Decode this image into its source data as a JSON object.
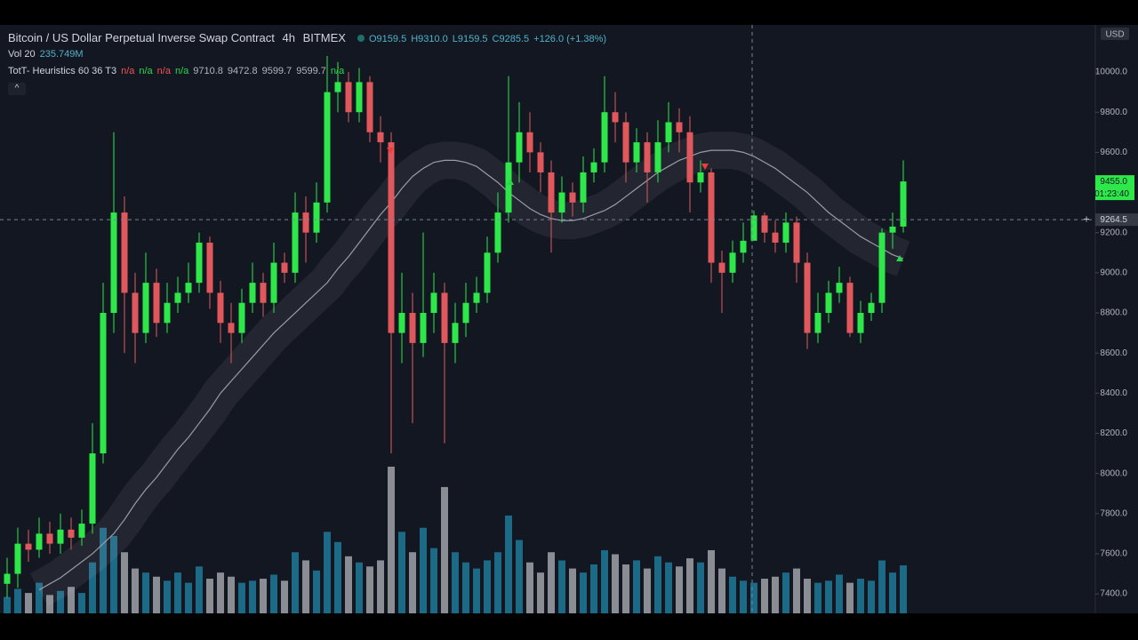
{
  "chart_data": {
    "type": "candlestick",
    "title": "Bitcoin / US Dollar Perpetual Inverse Swap Contract",
    "interval": "4h",
    "exchange": "BITMEX",
    "ohlc_labels": [
      "O9159.5",
      "H9310.0",
      "L9159.5",
      "C9285.5",
      "+126.0 (+1.38%)"
    ],
    "volume_name": "Vol 20",
    "volume_label": "235.749M",
    "indicator_name": "TotT- Heuristics 60 36 T3",
    "indicator_values": [
      "n/a",
      "n/a",
      "n/a",
      "n/a",
      "9710.8",
      "9472.8",
      "9599.7",
      "9599.7",
      "n/a"
    ],
    "indicator_colors": [
      "#ef5350",
      "#26d94b",
      "#ef5350",
      "#26d94b",
      "#b2b5be",
      "#b2b5be",
      "#b2b5be",
      "#b2b5be",
      "#26d94b"
    ],
    "currency": "USD",
    "up_color": "#2ee84a",
    "down_color": "#e0585c",
    "up_volume_color": "#1d6a86",
    "down_volume_color": "#8a8d93",
    "ma_color": "#9a9ca3",
    "ylim": [
      7303,
      10235
    ],
    "yticks": [
      {
        "value": 7400,
        "label": "7400.0"
      },
      {
        "value": 7600,
        "label": "7600.0"
      },
      {
        "value": 7800,
        "label": "7800.0"
      },
      {
        "value": 8000,
        "label": "8000.0"
      },
      {
        "value": 8200,
        "label": "8200.0"
      },
      {
        "value": 8400,
        "label": "8400.0"
      },
      {
        "value": 8600,
        "label": "8600.0"
      },
      {
        "value": 8800,
        "label": "8800.0"
      },
      {
        "value": 9000,
        "label": "9000.0"
      },
      {
        "value": 9200,
        "label": "9200.0"
      },
      {
        "value": 9400,
        "label": "9400.0"
      },
      {
        "value": 9600,
        "label": "9600.0"
      },
      {
        "value": 9800,
        "label": "9800.0"
      },
      {
        "value": 10000,
        "label": "10000.0"
      }
    ],
    "grid": false,
    "last_price": {
      "value": 9455,
      "label": "9455.0"
    },
    "countdown": "01:23:40",
    "crosshair_price": {
      "value": 9264.5,
      "label": "9264.5"
    },
    "open": [
      7450,
      7500,
      7650,
      7620,
      7700,
      7650,
      7720,
      7680,
      7750,
      8100,
      8800,
      9300,
      8900,
      8700,
      8950,
      8750,
      8850,
      8900,
      8950,
      9150,
      8900,
      8750,
      8700,
      8850,
      8950,
      8850,
      9050,
      9000,
      9300,
      9200,
      9350,
      9900,
      9950,
      9800,
      9950,
      9700,
      9650,
      8700,
      8800,
      8650,
      8800,
      8900,
      8650,
      8750,
      8850,
      8900,
      9100,
      9300,
      9550,
      9700,
      9600,
      9500,
      9300,
      9400,
      9350,
      9500,
      9550,
      9800,
      9750,
      9550,
      9650,
      9500,
      9650,
      9750,
      9700,
      9450,
      9500,
      9050,
      9000,
      9100,
      9159.5,
      9285.5,
      9200,
      9150,
      9250,
      9050,
      8700,
      8800,
      8900,
      8950,
      8700,
      8800,
      8850,
      9200,
      9230
    ],
    "high": [
      7580,
      7730,
      7720,
      7780,
      7760,
      7800,
      7780,
      7820,
      8250,
      8950,
      9700,
      9380,
      9000,
      9100,
      9020,
      8950,
      8980,
      9050,
      9200,
      9180,
      8960,
      8850,
      8920,
      9050,
      9000,
      9150,
      9100,
      9400,
      9380,
      9450,
      10080,
      10050,
      10000,
      10020,
      9980,
      9780,
      9700,
      9000,
      8900,
      9200,
      9000,
      8950,
      8850,
      8950,
      8980,
      9180,
      9400,
      9980,
      9850,
      9800,
      9650,
      9560,
      9480,
      9450,
      9580,
      9620,
      9980,
      9900,
      9800,
      9720,
      9700,
      9760,
      9850,
      9820,
      9780,
      9560,
      9520,
      9110,
      9160,
      9250,
      9310,
      9300,
      9260,
      9300,
      9280,
      9100,
      8900,
      8960,
      9030,
      8980,
      8860,
      8900,
      9220,
      9300,
      9560
    ],
    "low": [
      7380,
      7430,
      7560,
      7580,
      7600,
      7600,
      7620,
      7640,
      7700,
      8050,
      8700,
      8600,
      8550,
      8650,
      8680,
      8700,
      8800,
      8850,
      8900,
      8820,
      8650,
      8550,
      8650,
      8800,
      8780,
      8800,
      8950,
      8950,
      9050,
      9150,
      9300,
      9800,
      9750,
      9750,
      9650,
      9550,
      8100,
      8550,
      8250,
      8580,
      8700,
      8150,
      8550,
      8680,
      8800,
      8850,
      9050,
      9250,
      9450,
      9500,
      9400,
      9100,
      9250,
      9280,
      9300,
      9450,
      9500,
      9650,
      9450,
      9500,
      9350,
      9450,
      9600,
      9600,
      9300,
      9400,
      8950,
      8800,
      8950,
      9050,
      9159.5,
      9150,
      9100,
      9100,
      8950,
      8620,
      8650,
      8750,
      8850,
      8680,
      8650,
      8760,
      8800,
      9120,
      9200
    ],
    "close": [
      7500,
      7650,
      7620,
      7700,
      7650,
      7720,
      7680,
      7750,
      8100,
      8800,
      9300,
      8900,
      8700,
      8950,
      8750,
      8850,
      8900,
      8950,
      9150,
      8900,
      8750,
      8700,
      8850,
      8950,
      8850,
      9050,
      9000,
      9300,
      9200,
      9350,
      9900,
      9950,
      9800,
      9950,
      9700,
      9650,
      8700,
      8800,
      8650,
      8800,
      8900,
      8650,
      8750,
      8850,
      8900,
      9100,
      9300,
      9550,
      9700,
      9600,
      9500,
      9300,
      9400,
      9350,
      9500,
      9550,
      9800,
      9750,
      9550,
      9650,
      9500,
      9650,
      9750,
      9700,
      9450,
      9500,
      9050,
      9000,
      9100,
      9159.5,
      9285.5,
      9200,
      9150,
      9250,
      9050,
      8700,
      8800,
      8900,
      8950,
      8700,
      8800,
      8850,
      9200,
      9230,
      9455
    ],
    "volume": [
      80,
      120,
      100,
      150,
      90,
      110,
      130,
      100,
      250,
      420,
      380,
      300,
      220,
      200,
      180,
      160,
      200,
      150,
      230,
      170,
      200,
      180,
      150,
      160,
      170,
      190,
      160,
      300,
      260,
      210,
      400,
      350,
      280,
      250,
      230,
      260,
      720,
      400,
      300,
      420,
      320,
      620,
      300,
      250,
      220,
      260,
      300,
      480,
      360,
      250,
      200,
      300,
      260,
      220,
      200,
      240,
      310,
      290,
      240,
      260,
      220,
      280,
      250,
      230,
      270,
      250,
      310,
      220,
      180,
      160,
      150,
      170,
      180,
      200,
      220,
      170,
      150,
      160,
      190,
      150,
      170,
      160,
      260,
      200,
      235.749
    ],
    "ma": [
      null,
      null,
      null,
      7420,
      7450,
      7480,
      7520,
      7560,
      7600,
      7650,
      7700,
      7770,
      7850,
      7920,
      7980,
      8050,
      8120,
      8180,
      8250,
      8320,
      8400,
      8460,
      8520,
      8580,
      8640,
      8700,
      8750,
      8800,
      8850,
      8900,
      8950,
      9020,
      9080,
      9150,
      9220,
      9290,
      9350,
      9420,
      9480,
      9520,
      9550,
      9560,
      9560,
      9550,
      9530,
      9490,
      9450,
      9400,
      9360,
      9320,
      9290,
      9270,
      9260,
      9260,
      9270,
      9290,
      9310,
      9340,
      9380,
      9420,
      9460,
      9500,
      9530,
      9560,
      9580,
      9600,
      9610,
      9610,
      9610,
      9600,
      9580,
      9550,
      9520,
      9480,
      9440,
      9400,
      9350,
      9300,
      9260,
      9220,
      9180,
      9150,
      9120,
      9090,
      9070
    ]
  }
}
